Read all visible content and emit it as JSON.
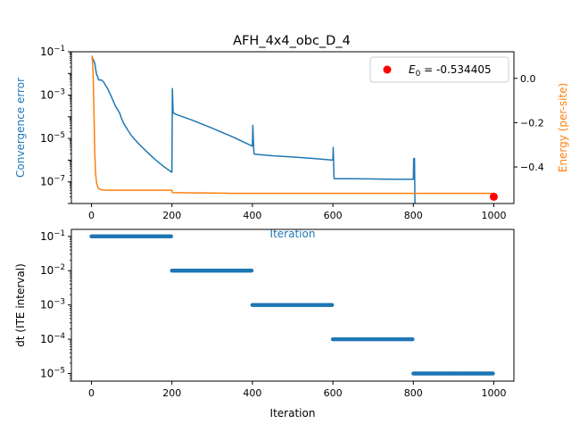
{
  "colors": {
    "convergence": "#1f77b4",
    "energy": "#ff7f0e",
    "marker": "#ff0000",
    "dt": "#1f77b4"
  },
  "chart_data": [
    {
      "type": "line",
      "title": "AFH_4x4_obc_D_4",
      "xlabel": "Iteration",
      "ylabel_left": "Convergence error",
      "ylabel_right": "Energy (per-site)",
      "left_scale": "log",
      "xlim": [
        -50,
        1050
      ],
      "ylim_left": [
        1e-08,
        0.1
      ],
      "ylim_right": [
        -0.565,
        0.12
      ],
      "x_ticks": [
        "0",
        "200",
        "400",
        "600",
        "800",
        "1000"
      ],
      "y_ticks_left": [
        {
          "value": 0.1,
          "base": "10",
          "exp": "−1"
        },
        {
          "value": 0.001,
          "base": "10",
          "exp": "−3"
        },
        {
          "value": 1e-05,
          "base": "10",
          "exp": "−5"
        },
        {
          "value": 1e-07,
          "base": "10",
          "exp": "−7"
        }
      ],
      "y_ticks_right": [
        "0.0",
        "−0.2",
        "−0.4"
      ],
      "legend": {
        "position": "top-right",
        "label_math": "E",
        "label_sub": "0",
        "label_rest": " = -0.534405"
      },
      "series": [
        {
          "axis": "left",
          "x": [
            0,
            3,
            8,
            12,
            18,
            25,
            30,
            40,
            50,
            60,
            70,
            75,
            80,
            90,
            100,
            120,
            140,
            160,
            180,
            199,
            200,
            201,
            203,
            210,
            250,
            300,
            350,
            399,
            400,
            401,
            403,
            404,
            405,
            450,
            500,
            550,
            599,
            600,
            601,
            603,
            604,
            605,
            650,
            700,
            750,
            799,
            800,
            801,
            803,
            804
          ],
          "y": [
            0.05,
            0.05,
            0.03,
            0.01,
            0.005,
            0.005,
            0.004,
            0.002,
            0.0008,
            0.0003,
            0.00015,
            8e-05,
            5e-05,
            2.5e-05,
            1.3e-05,
            5e-06,
            2.2e-06,
            1e-06,
            5e-07,
            2.8e-07,
            2.8e-07,
            0.002,
            0.00015,
            0.00013,
            7e-05,
            3e-05,
            1.2e-05,
            4.5e-06,
            4.5e-06,
            4e-05,
            4e-06,
            2e-06,
            1.9e-06,
            1.6e-06,
            1.4e-06,
            1.2e-06,
            1e-06,
            1e-06,
            3.8e-06,
            1.5e-07,
            1.4e-07,
            1.4e-07,
            1.4e-07,
            1.35e-07,
            1.3e-07,
            1.3e-07,
            1.3e-07,
            1.2e-06,
            1.2e-06,
            1e-08
          ]
        },
        {
          "axis": "right",
          "x": [
            0,
            2,
            4,
            6,
            8,
            10,
            13,
            16,
            20,
            25,
            30,
            40,
            60,
            100,
            150,
            199,
            200,
            201,
            250,
            300,
            350,
            400,
            500,
            600,
            700,
            800,
            900,
            1000
          ],
          "y": [
            0.1,
            0.1,
            0.03,
            -0.15,
            -0.33,
            -0.43,
            -0.475,
            -0.493,
            -0.5,
            -0.503,
            -0.504,
            -0.505,
            -0.505,
            -0.505,
            -0.505,
            -0.505,
            -0.505,
            -0.516,
            -0.517,
            -0.518,
            -0.519,
            -0.519,
            -0.519,
            -0.519,
            -0.519,
            -0.519,
            -0.519,
            -0.519
          ]
        }
      ],
      "final_point": {
        "x": 1000,
        "y": -0.534405
      }
    },
    {
      "type": "scatter",
      "xlabel": "Iteration",
      "ylabel": "dt (ITE interval)",
      "yscale": "log",
      "xlim": [
        -50,
        1050
      ],
      "ylim": [
        6e-06,
        0.16
      ],
      "x_ticks": [
        "0",
        "200",
        "400",
        "600",
        "800",
        "1000"
      ],
      "y_ticks": [
        {
          "value": 0.1,
          "base": "10",
          "exp": "−1"
        },
        {
          "value": 0.01,
          "base": "10",
          "exp": "−2"
        },
        {
          "value": 0.001,
          "base": "10",
          "exp": "−3"
        },
        {
          "value": 0.0001,
          "base": "10",
          "exp": "−4"
        },
        {
          "value": 1e-05,
          "base": "10",
          "exp": "−5"
        }
      ],
      "segments": [
        {
          "x_start": 0,
          "x_end": 199,
          "value": 0.1
        },
        {
          "x_start": 200,
          "x_end": 399,
          "value": 0.01
        },
        {
          "x_start": 400,
          "x_end": 599,
          "value": 0.001
        },
        {
          "x_start": 600,
          "x_end": 799,
          "value": 0.0001
        },
        {
          "x_start": 800,
          "x_end": 999,
          "value": 1e-05
        }
      ]
    }
  ]
}
